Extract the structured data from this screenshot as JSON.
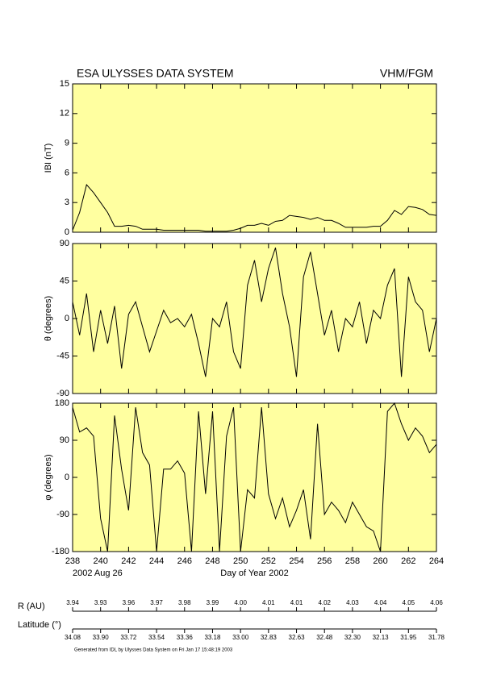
{
  "header": {
    "title": "ESA ULYSSES DATA SYSTEM",
    "instrument": "VHM/FGM"
  },
  "chart_data": [
    {
      "type": "line",
      "y_label": "IBI (nT)",
      "color": "#000000",
      "xlim": [
        238,
        264
      ],
      "ylim": [
        0,
        15
      ],
      "yticks": [
        0,
        3,
        6,
        9,
        12,
        15
      ],
      "x": [
        238,
        238.5,
        239,
        239.5,
        240,
        240.5,
        241,
        241.5,
        242,
        242.5,
        243,
        243.5,
        244,
        244.5,
        245,
        245.5,
        246,
        246.5,
        247,
        247.5,
        248,
        248.5,
        249,
        249.5,
        250,
        250.5,
        251,
        251.5,
        252,
        252.5,
        253,
        253.5,
        254,
        254.5,
        255,
        255.5,
        256,
        256.5,
        257,
        257.5,
        258,
        258.5,
        259,
        259.5,
        260,
        260.5,
        261,
        261.5,
        262,
        262.5,
        263,
        263.5,
        264
      ],
      "values": [
        0.2,
        2,
        4.8,
        4,
        3,
        2,
        0.6,
        0.6,
        0.7,
        0.6,
        0.3,
        0.3,
        0.3,
        0.2,
        0.2,
        0.2,
        0.2,
        0.2,
        0.2,
        0.1,
        0.1,
        0.1,
        0.1,
        0.2,
        0.4,
        0.7,
        0.7,
        0.9,
        0.7,
        1.1,
        1.2,
        1.7,
        1.6,
        1.5,
        1.3,
        1.5,
        1.2,
        1.2,
        0.9,
        0.5,
        0.5,
        0.5,
        0.5,
        0.6,
        0.6,
        1.2,
        2.2,
        1.8,
        2.6,
        2.5,
        2.3,
        1.8,
        1.7
      ]
    },
    {
      "type": "line",
      "y_label": "θ (degrees)",
      "color": "#000000",
      "xlim": [
        238,
        264
      ],
      "ylim": [
        -90,
        90
      ],
      "yticks": [
        -90,
        -45,
        0,
        45,
        90
      ],
      "x": [
        238,
        238.5,
        239,
        239.5,
        240,
        240.5,
        241,
        241.5,
        242,
        242.5,
        243,
        243.5,
        244,
        244.5,
        245,
        245.5,
        246,
        246.5,
        247,
        247.5,
        248,
        248.5,
        249,
        249.5,
        250,
        250.5,
        251,
        251.5,
        252,
        252.5,
        253,
        253.5,
        254,
        254.5,
        255,
        255.5,
        256,
        256.5,
        257,
        257.5,
        258,
        258.5,
        259,
        259.5,
        260,
        260.5,
        261,
        261.5,
        262,
        262.5,
        263,
        263.5,
        264
      ],
      "values": [
        20,
        -20,
        30,
        -40,
        10,
        -30,
        15,
        -60,
        5,
        20,
        -10,
        -40,
        -15,
        10,
        -5,
        0,
        -10,
        5,
        -30,
        -70,
        0,
        -10,
        20,
        -40,
        -60,
        40,
        70,
        20,
        60,
        85,
        30,
        -10,
        -70,
        50,
        80,
        30,
        -20,
        10,
        -40,
        0,
        -10,
        20,
        -30,
        10,
        0,
        40,
        60,
        -70,
        50,
        20,
        10,
        -40,
        0
      ]
    },
    {
      "type": "line",
      "y_label": "φ (degrees)",
      "color": "#000000",
      "xlim": [
        238,
        264
      ],
      "ylim": [
        -180,
        180
      ],
      "yticks": [
        -180,
        -90,
        0,
        90,
        180
      ],
      "xticks": [
        238,
        240,
        242,
        244,
        246,
        248,
        250,
        252,
        254,
        256,
        258,
        260,
        262,
        264
      ],
      "x_label": "Day of Year 2002",
      "date_label": "2002 Aug 26",
      "x": [
        238,
        238.5,
        239,
        239.5,
        240,
        240.5,
        241,
        241.5,
        242,
        242.5,
        243,
        243.5,
        244,
        244.5,
        245,
        245.5,
        246,
        246.5,
        247,
        247.5,
        248,
        248.5,
        249,
        249.5,
        250,
        250.5,
        251,
        251.5,
        252,
        252.5,
        253,
        253.5,
        254,
        254.5,
        255,
        255.5,
        256,
        256.5,
        257,
        257.5,
        258,
        258.5,
        259,
        259.5,
        260,
        260.5,
        261,
        261.5,
        262,
        262.5,
        263,
        263.5,
        264
      ],
      "values": [
        170,
        110,
        120,
        100,
        -100,
        -180,
        150,
        20,
        -80,
        170,
        60,
        30,
        -180,
        20,
        20,
        40,
        10,
        -180,
        160,
        -40,
        160,
        -180,
        100,
        170,
        -180,
        -30,
        -50,
        170,
        -40,
        -100,
        -50,
        -120,
        -80,
        -30,
        -150,
        130,
        -90,
        -60,
        -80,
        -110,
        -60,
        -90,
        -120,
        -130,
        -180,
        160,
        180,
        130,
        90,
        120,
        100,
        60,
        80
      ]
    }
  ],
  "orbit": {
    "r_label": "R (AU)",
    "r_values": [
      "3.94",
      "3.93",
      "3.96",
      "3.97",
      "3.98",
      "3.99",
      "4.00",
      "4.01",
      "4.01",
      "4.02",
      "4.03",
      "4.04",
      "4.05",
      "4.06"
    ],
    "lat_label": "Latitude (°)",
    "lat_values": [
      "34.08",
      "33.90",
      "33.72",
      "33.54",
      "33.36",
      "33.18",
      "33.00",
      "32.83",
      "32.63",
      "32.48",
      "32.30",
      "32.13",
      "31.95",
      "31.78"
    ]
  },
  "footer": "Generated from IDL by Ulysses Data System on Fri Jan 17 15:48:19 2003"
}
